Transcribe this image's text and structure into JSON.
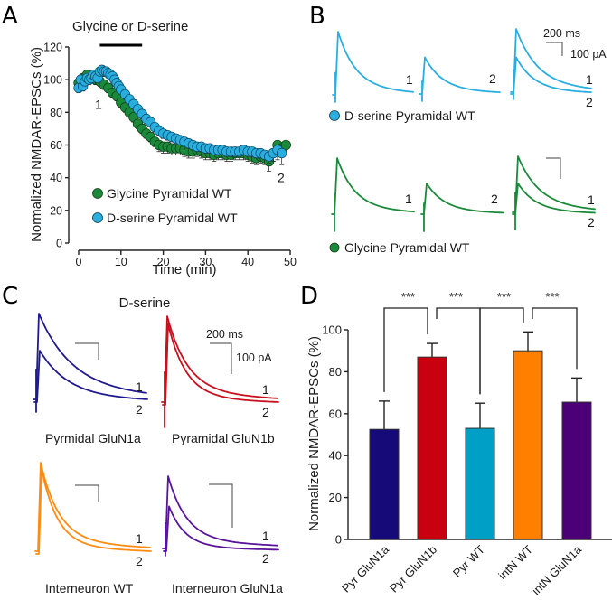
{
  "panels": {
    "A": {
      "letter": "A"
    },
    "B": {
      "letter": "B"
    },
    "C": {
      "letter": "C"
    },
    "D": {
      "letter": "D"
    }
  },
  "colors": {
    "glycine": "#1a8a3a",
    "dserine": "#29aee0",
    "pyr_glun1a": "#150a78",
    "pyr_glun1b": "#c8000f",
    "pyr_wt": "#00a0c6",
    "intn_wt": "#ff8000",
    "intn_glun1a": "#4b0078",
    "trace_glun1a": "#201a8e",
    "trace_glun1b": "#c8101e",
    "trace_intn_wt": "#ff8c10",
    "trace_intn_glun1a": "#58149a"
  },
  "chart_data": [
    {
      "panel": "A",
      "type": "scatter",
      "title": "",
      "annotation": "Glycine or D-serine",
      "application_window_min": [
        5,
        15
      ],
      "xlabel": "Time (min)",
      "ylabel": "Normalized NMDAR-EPSCs (%)",
      "xlim": [
        0,
        50
      ],
      "ylim": [
        0,
        120
      ],
      "xticks": [
        0,
        10,
        20,
        30,
        40,
        50
      ],
      "yticks": [
        0,
        20,
        40,
        60,
        80,
        100,
        120
      ],
      "point_labels": [
        {
          "text": "1",
          "x": 3,
          "y": 85
        },
        {
          "text": "2",
          "x": 47,
          "y": 40
        }
      ],
      "legend": [
        "Glycine Pyramidal WT",
        "D-serine Pyramidal WT"
      ],
      "legend_position": "bottom-left",
      "series": [
        {
          "name": "Glycine Pyramidal WT",
          "x": [
            0,
            1,
            2,
            3,
            4,
            5,
            6,
            7,
            8,
            9,
            10,
            11,
            12,
            13,
            14,
            15,
            16,
            17,
            18,
            19,
            20,
            21,
            22,
            23,
            24,
            25,
            26,
            27,
            28,
            29,
            30,
            31,
            32,
            33,
            34,
            35,
            36,
            37,
            38,
            39,
            40,
            41,
            42,
            43,
            44,
            45,
            46,
            47,
            48,
            49
          ],
          "y": [
            98,
            101,
            103,
            101,
            100,
            99,
            97,
            95,
            92,
            90,
            86,
            83,
            80,
            77,
            73,
            70,
            67,
            65,
            62,
            60,
            59,
            59,
            58,
            58,
            58,
            57,
            56,
            56,
            57,
            56,
            55,
            55,
            54,
            55,
            55,
            54,
            54,
            55,
            55,
            55,
            54,
            53,
            52,
            53,
            52,
            50,
            55,
            60,
            58,
            60
          ],
          "err": [
            3,
            3,
            3,
            3,
            3,
            3,
            3,
            3,
            3,
            3,
            3,
            3,
            3,
            3,
            3,
            3,
            3,
            3,
            3,
            4,
            4,
            4,
            4,
            4,
            4,
            4,
            4,
            4,
            4,
            4,
            4,
            4,
            4,
            4,
            4,
            4,
            4,
            4,
            4,
            4,
            4,
            4,
            4,
            4,
            4,
            6,
            5,
            5,
            5,
            6
          ]
        },
        {
          "name": "D-serine Pyramidal WT",
          "x": [
            0,
            0.5,
            1,
            1.5,
            2,
            2.5,
            3,
            3.5,
            4,
            4.5,
            5,
            5.5,
            6,
            6.5,
            7,
            7.5,
            8,
            8.5,
            9,
            9.5,
            10,
            11,
            12,
            13,
            14,
            15,
            16,
            17,
            18,
            19,
            20,
            21,
            22,
            23,
            24,
            25,
            26,
            27,
            28,
            29,
            30,
            31,
            32,
            33,
            34,
            35,
            36,
            37,
            38,
            39,
            40,
            41,
            42,
            43,
            44,
            45,
            46,
            47,
            48
          ],
          "y": [
            95,
            100,
            96,
            99,
            101,
            100,
            101,
            103,
            102,
            101,
            105,
            106,
            105,
            105,
            104,
            103,
            102,
            100,
            98,
            96,
            94,
            91,
            88,
            85,
            82,
            79,
            76,
            74,
            71,
            69,
            67,
            66,
            65,
            64,
            63,
            62,
            61,
            60,
            59,
            59,
            58,
            58,
            57,
            57,
            57,
            56,
            56,
            56,
            56,
            57,
            56,
            56,
            55,
            55,
            54,
            53,
            55,
            57,
            55
          ],
          "err": [
            3,
            3,
            3,
            3,
            3,
            3,
            3,
            3,
            3,
            3,
            3,
            3,
            3,
            3,
            3,
            3,
            3,
            3,
            3,
            3,
            3,
            3,
            3,
            3,
            3,
            3,
            3,
            3,
            3,
            3,
            3,
            3,
            3,
            3,
            3,
            3,
            3,
            3,
            3,
            3,
            3,
            3,
            3,
            3,
            3,
            3,
            3,
            3,
            3,
            3,
            3,
            3,
            3,
            3,
            3,
            4,
            5,
            6,
            7
          ]
        }
      ]
    },
    {
      "panel": "D",
      "type": "bar",
      "title": "",
      "xlabel": "",
      "ylabel": "Normalized NMDAR-EPSCs (%)",
      "ylim": [
        0,
        100
      ],
      "yticks": [
        0,
        20,
        40,
        60,
        80,
        100
      ],
      "categories": [
        "Pyr GluN1a",
        "Pyr GluN1b",
        "Pyr WT",
        "intN WT",
        "intN GluN1a"
      ],
      "values": [
        52.5,
        87,
        53,
        90,
        65.5
      ],
      "errors": [
        13.5,
        6.5,
        12,
        9,
        11.5
      ],
      "significance": [
        {
          "from": 0,
          "to": 1,
          "label": "***"
        },
        {
          "from": 1,
          "to": 2,
          "label": "***"
        },
        {
          "from": 2,
          "to": 3,
          "label": "***"
        },
        {
          "from": 3,
          "to": 4,
          "label": "***"
        }
      ]
    }
  ],
  "panelB": {
    "scale_time": "200 ms",
    "scale_amp": "100 pA",
    "rows": [
      {
        "legend": "D-serine Pyramidal WT",
        "color_key": "dserine",
        "labels": [
          "1",
          "2",
          "1",
          "2"
        ],
        "peak1": 1.0,
        "peak2": 0.58
      },
      {
        "legend": "Glycine Pyramidal WT",
        "color_key": "glycine",
        "labels": [
          "1",
          "2",
          "1",
          "2"
        ],
        "peak1": 1.0,
        "peak2": 0.55
      }
    ]
  },
  "panelC": {
    "title": "D-serine",
    "scale_time": "200 ms",
    "scale_amp": "100 pA",
    "cells": [
      {
        "name": "Pyrmidal GluN1a",
        "color_key": "trace_glun1a",
        "label1": "1",
        "label2": "2",
        "peak1": 1.0,
        "peak2": 0.6
      },
      {
        "name": "Pyramidal GluN1b",
        "color_key": "trace_glun1b",
        "label1": "1",
        "label2": "2",
        "peak1": 1.0,
        "peak2": 0.94
      },
      {
        "name": "Interneuron WT",
        "color_key": "trace_intn_wt",
        "label1": "1",
        "label2": "2",
        "peak1": 1.0,
        "peak2": 0.96
      },
      {
        "name": "Interneuron GluN1a",
        "color_key": "trace_intn_glun1a",
        "label1": "1",
        "label2": "2",
        "peak1": 1.0,
        "peak2": 0.62
      }
    ]
  }
}
